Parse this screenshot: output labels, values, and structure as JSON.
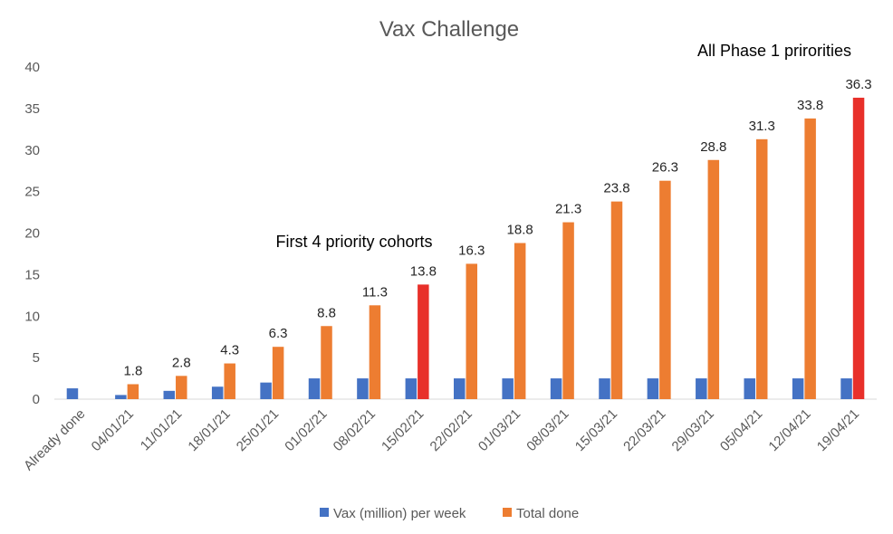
{
  "chart_data": {
    "type": "bar",
    "title": "Vax Challenge",
    "categories": [
      "Already done",
      "04/01/21",
      "11/01/21",
      "18/01/21",
      "25/01/21",
      "01/02/21",
      "08/02/21",
      "15/02/21",
      "22/02/21",
      "01/03/21",
      "08/03/21",
      "15/03/21",
      "22/03/21",
      "29/03/21",
      "05/04/21",
      "12/04/21",
      "19/04/21"
    ],
    "ylim": [
      0,
      40
    ],
    "yticks": [
      0,
      5,
      10,
      15,
      20,
      25,
      30,
      35,
      40
    ],
    "grid": false,
    "legend_position": "bottom",
    "series": [
      {
        "name": "Vax (million) per week",
        "color": "#4472c4",
        "values": [
          1.3,
          0.5,
          1.0,
          1.5,
          2.0,
          2.5,
          2.5,
          2.5,
          2.5,
          2.5,
          2.5,
          2.5,
          2.5,
          2.5,
          2.5,
          2.5,
          2.5
        ]
      },
      {
        "name": "Total done",
        "color": "#ed7d31",
        "highlight_color": "#e8302a",
        "highlight_indices": [
          7,
          16
        ],
        "values": [
          null,
          1.8,
          2.8,
          4.3,
          6.3,
          8.8,
          11.3,
          13.8,
          16.3,
          18.8,
          21.3,
          23.8,
          26.3,
          28.8,
          31.3,
          33.8,
          36.3
        ],
        "labels": [
          "",
          "1.8",
          "2.8",
          "4.3",
          "6.3",
          "8.8",
          "11.3",
          "13.8",
          "16.3",
          "18.8",
          "21.3",
          "23.8",
          "26.3",
          "28.8",
          "31.3",
          "33.8",
          "36.3"
        ]
      }
    ],
    "annotations": [
      {
        "text": "First 4 priority cohorts",
        "category_index": 7
      },
      {
        "text": "All Phase 1 prirorities",
        "category_index": 16
      }
    ]
  }
}
